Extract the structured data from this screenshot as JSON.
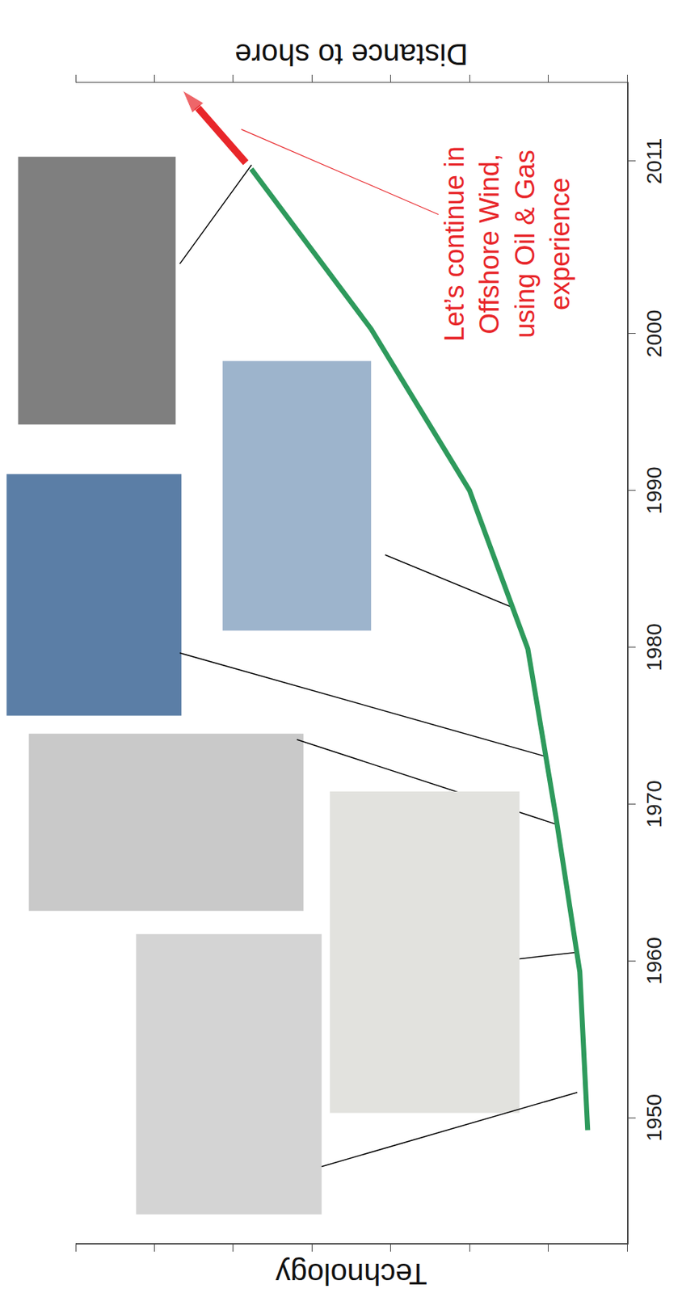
{
  "chart_data": {
    "type": "line",
    "y_label": "Technology",
    "y2_label": "Distance to shore",
    "xlim": [
      1942,
      2016
    ],
    "xticks": [
      1950,
      1960,
      1970,
      1980,
      1990,
      2000,
      2011
    ],
    "ylim": [
      0,
      7
    ],
    "yticks": [
      0,
      1,
      2,
      3,
      4,
      5,
      6,
      7
    ],
    "y2lim": [
      0,
      7
    ],
    "y2ticks": [
      0,
      1,
      2,
      3,
      4,
      5,
      6,
      7
    ],
    "tick_labels": "x",
    "grid": false,
    "series": [
      {
        "x": [
          1949.2,
          1959.3,
          1969.1,
          1979.9,
          1990,
          2000.3,
          2010.5
        ],
        "values": [
          0.5,
          0.6,
          0.9,
          1.26,
          2.0,
          3.25,
          4.77
        ],
        "color": "#2e9a5c",
        "line_style": "solid"
      },
      {
        "x": [
          2010.9,
          2015.5
        ],
        "values": [
          4.84,
          5.64
        ],
        "color": "#e8262a",
        "line_style": "solid",
        "marker": "arrow"
      }
    ],
    "annotations": [
      {
        "lines": [
          "Let’s continue in",
          "Offshore Wind,",
          "using Oil & Gas",
          "experience"
        ],
        "x": 2005.7,
        "y": 1.52,
        "points_to": [
          2013.1,
          4.93
        ],
        "color": "#e8262a"
      }
    ]
  }
}
